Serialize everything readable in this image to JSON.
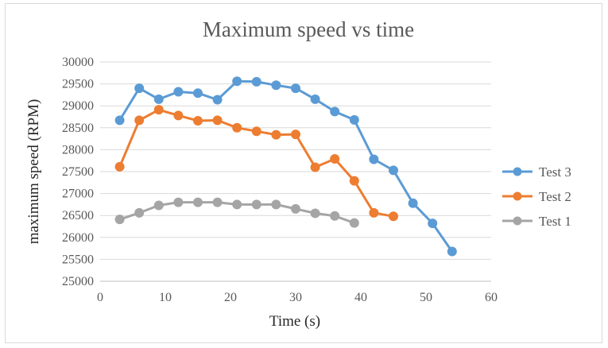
{
  "chart_data": {
    "type": "line",
    "title": "Maximum speed vs time",
    "xlabel": "Time (s)",
    "ylabel": "maximum speed (RPM)",
    "xlim": [
      0,
      60
    ],
    "ylim": [
      25000,
      30000
    ],
    "xticks": [
      0,
      10,
      20,
      30,
      40,
      50,
      60
    ],
    "yticks": [
      25000,
      25500,
      26000,
      26500,
      27000,
      27500,
      28000,
      28500,
      29000,
      29500,
      30000
    ],
    "grid": "horizontal",
    "legend_position": "right",
    "series": [
      {
        "name": "Test 3",
        "color": "#5b9bd5",
        "x": [
          3,
          6,
          9,
          12,
          15,
          18,
          21,
          24,
          27,
          30,
          33,
          36,
          39,
          42,
          45,
          48,
          51,
          54
        ],
        "y": [
          28670,
          29400,
          29150,
          29320,
          29290,
          29140,
          29560,
          29550,
          29470,
          29400,
          29150,
          28870,
          28680,
          27780,
          27530,
          26780,
          26320,
          25680
        ]
      },
      {
        "name": "Test 2",
        "color": "#ed7d31",
        "x": [
          3,
          6,
          9,
          12,
          15,
          18,
          21,
          24,
          27,
          30,
          33,
          36,
          39,
          42,
          45
        ],
        "y": [
          27610,
          28670,
          28910,
          28780,
          28660,
          28670,
          28500,
          28420,
          28340,
          28350,
          27600,
          27790,
          27290,
          26560,
          26480
        ]
      },
      {
        "name": "Test 1",
        "color": "#a5a5a5",
        "x": [
          3,
          6,
          9,
          12,
          15,
          18,
          21,
          24,
          27,
          30,
          33,
          36,
          39
        ],
        "y": [
          26410,
          26560,
          26730,
          26800,
          26800,
          26800,
          26750,
          26750,
          26750,
          26650,
          26550,
          26490,
          26330
        ]
      }
    ]
  }
}
